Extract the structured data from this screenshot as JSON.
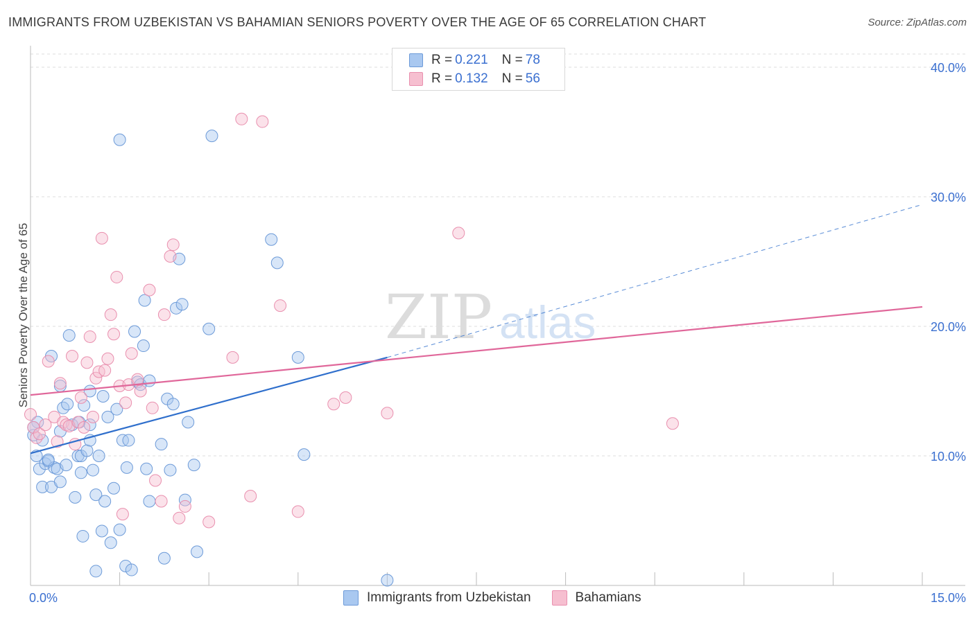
{
  "header": {
    "title": "IMMIGRANTS FROM UZBEKISTAN VS BAHAMIAN SENIORS POVERTY OVER THE AGE OF 65 CORRELATION CHART",
    "source": "Source: ZipAtlas.com"
  },
  "watermark": {
    "zip": "ZIP",
    "atlas": "atlas"
  },
  "legend": {
    "series1": {
      "r_label": "R = ",
      "r_value": "0.221",
      "n_label": "N = ",
      "n_value": "78"
    },
    "series2": {
      "r_label": "R = ",
      "r_value": "0.132",
      "n_label": "N = ",
      "n_value": "56"
    }
  },
  "colors": {
    "blue_fill": "#a9c8f0",
    "blue_stroke": "#6c9ad8",
    "blue_line": "#2f6fcc",
    "pink_fill": "#f6bfd0",
    "pink_stroke": "#e98fae",
    "pink_line": "#e0679a",
    "axis_label": "#3a6fd0"
  },
  "chart_data": {
    "type": "scatter",
    "title": "IMMIGRANTS FROM UZBEKISTAN VS BAHAMIAN SENIORS POVERTY OVER THE AGE OF 65 CORRELATION CHART",
    "xlabel": "",
    "ylabel": "Seniors Poverty Over the Age of 65",
    "xlim": [
      0,
      15
    ],
    "ylim": [
      0,
      40
    ],
    "x_tick_labels": [
      "0.0%",
      "15.0%"
    ],
    "y_ticks": [
      10,
      20,
      30,
      40
    ],
    "y_tick_labels": [
      "10.0%",
      "20.0%",
      "30.0%",
      "40.0%"
    ],
    "legend_position": "top-center",
    "series": [
      {
        "name": "Immigrants from Uzbekistan",
        "color": "#a9c8f0",
        "R": 0.221,
        "N": 78,
        "trend": {
          "x": [
            0,
            6
          ],
          "y": [
            10.2,
            17.6
          ],
          "dashed_extension_to": [
            15,
            29.4
          ]
        },
        "points": [
          [
            0.05,
            11.6
          ],
          [
            0.1,
            10.0
          ],
          [
            0.12,
            12.6
          ],
          [
            0.15,
            9.0
          ],
          [
            0.2,
            11.2
          ],
          [
            0.2,
            7.6
          ],
          [
            0.25,
            9.4
          ],
          [
            0.3,
            9.6
          ],
          [
            0.35,
            17.7
          ],
          [
            0.35,
            7.6
          ],
          [
            0.4,
            9.1
          ],
          [
            0.45,
            9.0
          ],
          [
            0.5,
            8.0
          ],
          [
            0.5,
            15.4
          ],
          [
            0.55,
            13.7
          ],
          [
            0.6,
            9.3
          ],
          [
            0.62,
            14.0
          ],
          [
            0.65,
            19.3
          ],
          [
            0.7,
            12.4
          ],
          [
            0.75,
            6.8
          ],
          [
            0.8,
            10.0
          ],
          [
            0.82,
            12.6
          ],
          [
            0.85,
            10.0
          ],
          [
            0.85,
            8.7
          ],
          [
            0.88,
            3.8
          ],
          [
            0.9,
            13.9
          ],
          [
            0.95,
            10.4
          ],
          [
            1.0,
            11.2
          ],
          [
            1.0,
            15.0
          ],
          [
            1.05,
            8.9
          ],
          [
            1.1,
            7.0
          ],
          [
            1.1,
            1.1
          ],
          [
            1.15,
            10.0
          ],
          [
            1.2,
            4.2
          ],
          [
            1.22,
            14.6
          ],
          [
            1.25,
            6.5
          ],
          [
            1.3,
            13.0
          ],
          [
            1.35,
            3.3
          ],
          [
            1.4,
            7.5
          ],
          [
            1.45,
            13.6
          ],
          [
            1.5,
            4.3
          ],
          [
            1.5,
            34.4
          ],
          [
            1.55,
            11.2
          ],
          [
            1.6,
            1.5
          ],
          [
            1.62,
            9.1
          ],
          [
            1.65,
            11.2
          ],
          [
            1.7,
            1.2
          ],
          [
            1.75,
            19.6
          ],
          [
            1.8,
            15.7
          ],
          [
            1.85,
            15.5
          ],
          [
            1.9,
            18.5
          ],
          [
            1.92,
            22.0
          ],
          [
            1.95,
            9.0
          ],
          [
            2.0,
            6.5
          ],
          [
            2.0,
            15.8
          ],
          [
            2.2,
            10.9
          ],
          [
            2.25,
            2.1
          ],
          [
            2.3,
            14.4
          ],
          [
            2.35,
            8.9
          ],
          [
            2.4,
            14.0
          ],
          [
            2.45,
            21.4
          ],
          [
            2.5,
            25.2
          ],
          [
            2.55,
            21.7
          ],
          [
            2.6,
            6.6
          ],
          [
            2.65,
            12.6
          ],
          [
            2.75,
            9.3
          ],
          [
            2.8,
            2.6
          ],
          [
            3.0,
            19.8
          ],
          [
            3.05,
            34.7
          ],
          [
            4.05,
            26.7
          ],
          [
            4.15,
            24.9
          ],
          [
            4.5,
            17.6
          ],
          [
            4.6,
            10.1
          ],
          [
            6.0,
            0.4
          ],
          [
            0.5,
            11.9
          ],
          [
            0.05,
            12.2
          ],
          [
            0.3,
            9.7
          ],
          [
            1.0,
            12.4
          ]
        ]
      },
      {
        "name": "Bahamians",
        "color": "#f6bfd0",
        "R": 0.132,
        "N": 56,
        "trend": {
          "x": [
            0,
            15
          ],
          "y": [
            14.7,
            21.5
          ]
        },
        "points": [
          [
            0.0,
            13.2
          ],
          [
            0.05,
            12.2
          ],
          [
            0.1,
            11.4
          ],
          [
            0.15,
            11.7
          ],
          [
            0.25,
            12.4
          ],
          [
            0.3,
            17.3
          ],
          [
            0.4,
            13.0
          ],
          [
            0.45,
            11.1
          ],
          [
            0.5,
            15.6
          ],
          [
            0.55,
            12.6
          ],
          [
            0.6,
            12.4
          ],
          [
            0.65,
            12.3
          ],
          [
            0.7,
            17.7
          ],
          [
            0.75,
            10.9
          ],
          [
            0.8,
            12.6
          ],
          [
            0.85,
            14.5
          ],
          [
            0.9,
            12.2
          ],
          [
            0.95,
            17.2
          ],
          [
            1.0,
            19.2
          ],
          [
            1.05,
            13.0
          ],
          [
            1.1,
            16.0
          ],
          [
            1.15,
            16.5
          ],
          [
            1.2,
            26.8
          ],
          [
            1.25,
            16.6
          ],
          [
            1.3,
            17.5
          ],
          [
            1.35,
            20.9
          ],
          [
            1.4,
            19.4
          ],
          [
            1.45,
            23.8
          ],
          [
            1.5,
            15.4
          ],
          [
            1.55,
            5.5
          ],
          [
            1.6,
            14.1
          ],
          [
            1.65,
            15.5
          ],
          [
            1.7,
            17.9
          ],
          [
            1.8,
            15.9
          ],
          [
            1.85,
            15.0
          ],
          [
            2.0,
            22.8
          ],
          [
            2.05,
            13.7
          ],
          [
            2.1,
            8.1
          ],
          [
            2.2,
            6.5
          ],
          [
            2.25,
            20.9
          ],
          [
            2.35,
            25.4
          ],
          [
            2.4,
            26.3
          ],
          [
            2.5,
            5.2
          ],
          [
            2.6,
            6.1
          ],
          [
            3.0,
            4.9
          ],
          [
            3.4,
            17.6
          ],
          [
            3.55,
            36.0
          ],
          [
            3.7,
            6.9
          ],
          [
            3.9,
            35.8
          ],
          [
            4.2,
            21.6
          ],
          [
            4.5,
            5.7
          ],
          [
            5.1,
            14.0
          ],
          [
            5.3,
            14.5
          ],
          [
            6.0,
            13.3
          ],
          [
            7.2,
            27.2
          ],
          [
            10.8,
            12.5
          ]
        ]
      }
    ]
  },
  "bottom_legend": {
    "series1_label": "Immigrants from Uzbekistan",
    "series2_label": "Bahamians"
  }
}
